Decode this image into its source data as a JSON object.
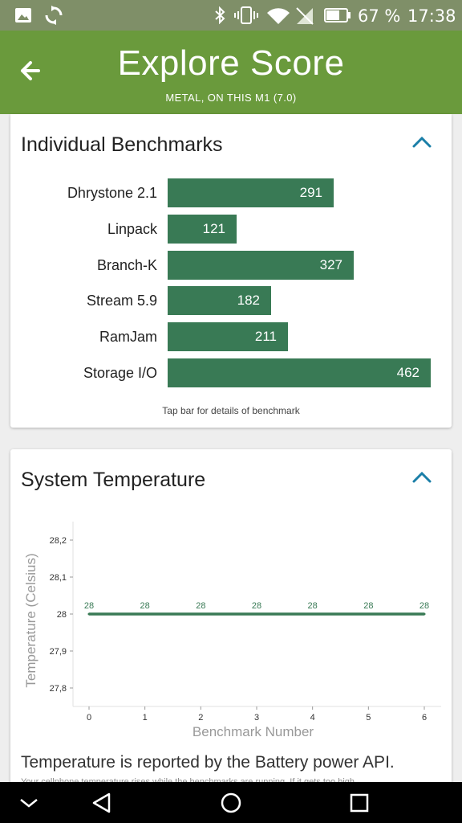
{
  "status_bar": {
    "icons": [
      "image-icon",
      "sync-icon",
      "bluetooth-icon",
      "vibrate-icon",
      "wifi-icon",
      "no-signal-icon",
      "battery-icon"
    ],
    "battery_percent": "67 %",
    "time": "17:38"
  },
  "app_bar": {
    "title": "Explore Score",
    "subtitle": "METAL, ON THIS M1 (7.0)",
    "back_icon": "arrow-left-icon"
  },
  "benchmarks": {
    "title": "Individual Benchmarks",
    "toggle_icon": "chevron-up-icon",
    "max_value": 462,
    "items": [
      {
        "label": "Dhrystone 2.1",
        "value": "291"
      },
      {
        "label": "Linpack",
        "value": "121"
      },
      {
        "label": "Branch-K",
        "value": "327"
      },
      {
        "label": "Stream 5.9",
        "value": "182"
      },
      {
        "label": "RamJam",
        "value": "211"
      },
      {
        "label": "Storage I/O",
        "value": "462"
      }
    ],
    "hint": "Tap bar for details of benchmark",
    "bar_color": "#397a55"
  },
  "temperature": {
    "title": "System Temperature",
    "toggle_icon": "chevron-up-icon",
    "note": "Temperature is reported by the Battery power API.",
    "note2": "Your cellphone temperature rises while the benchmarks are running. If it gets too high,",
    "chart_data": {
      "type": "line",
      "title": "",
      "xlabel": "Benchmark Number",
      "ylabel": "Temperature (Celsius)",
      "x": [
        0,
        1,
        2,
        3,
        4,
        5,
        6
      ],
      "xticks": [
        "0",
        "1",
        "2",
        "3",
        "4",
        "5",
        "6"
      ],
      "yticks": [
        "27,8",
        "27,9",
        "28",
        "28,1",
        "28,2"
      ],
      "ylim": [
        27.75,
        28.25
      ],
      "series": [
        {
          "values": [
            28,
            28,
            28,
            28,
            28,
            28,
            28
          ],
          "labels": [
            "28",
            "28",
            "28",
            "28",
            "28",
            "28",
            "28"
          ],
          "color": "#397a55"
        }
      ],
      "grid": false
    }
  },
  "nav_bar": {
    "icons": [
      "chevron-down-icon",
      "back-triangle-icon",
      "home-circle-icon",
      "recents-square-icon"
    ]
  },
  "colors": {
    "app_bar": "#6a9a3c",
    "status_bar": "#7f8f68",
    "accent": "#1b7fa8"
  }
}
